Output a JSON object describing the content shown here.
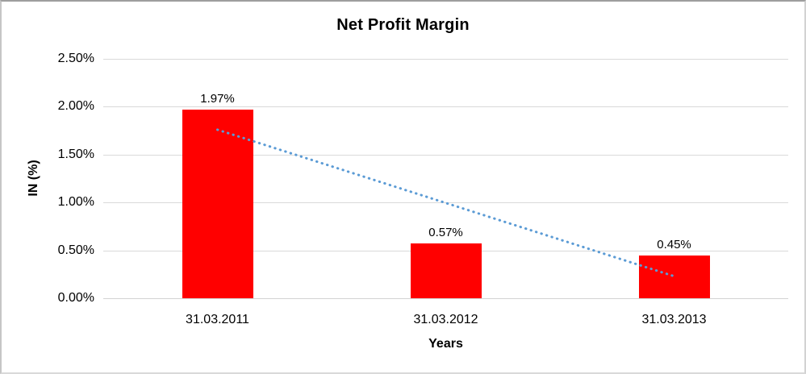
{
  "frame": {
    "background": "#FFFFFF",
    "border_color": "#BFBFBF"
  },
  "chart_data": {
    "type": "bar",
    "title": "Net Profit Margin",
    "xlabel": "Years",
    "ylabel": "IN (%)",
    "categories": [
      "31.03.2011",
      "31.03.2012",
      "31.03.2013"
    ],
    "values": [
      1.97,
      0.57,
      0.45
    ],
    "value_labels": [
      "1.97%",
      "0.57%",
      "0.45%"
    ],
    "ylim": [
      0,
      2.5
    ],
    "yticks": [
      0.0,
      0.5,
      1.0,
      1.5,
      2.0,
      2.5
    ],
    "ytick_labels": [
      "0.00%",
      "0.50%",
      "1.00%",
      "1.50%",
      "2.00%",
      "2.50%"
    ],
    "grid": true,
    "legend": "none",
    "bar_color": "#FF0000",
    "gridline_color": "#D9D9D9",
    "axis_line_color": "#D3D3D3",
    "text_color": "#000000",
    "trendline": {
      "type": "linear",
      "style": "dotted",
      "color": "#5B9BD5",
      "start_value": 1.76,
      "end_value": 0.23
    }
  }
}
